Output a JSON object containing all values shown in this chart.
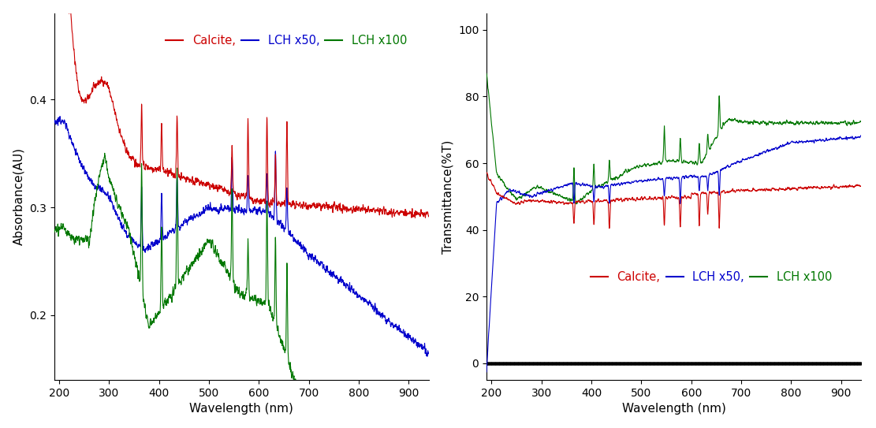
{
  "xlim": [
    190,
    940
  ],
  "abs_ylim": [
    0.14,
    0.48
  ],
  "trans_ylim": [
    -5,
    105
  ],
  "abs_yticks": [
    0.2,
    0.3,
    0.4
  ],
  "trans_yticks": [
    0,
    20,
    40,
    60,
    80,
    100
  ],
  "xlabel": "Wavelength (nm)",
  "abs_ylabel": "Absorbance(AU)",
  "trans_ylabel": "Transmittance(%T)",
  "legend_calcite": "Calcite,",
  "legend_lch50": "LCH x50,",
  "legend_lch100": "LCH x100",
  "color_calcite": "#cc0000",
  "color_lch50": "#0000cc",
  "color_lch100": "#007700",
  "background": "#ffffff",
  "xticks": [
    200,
    300,
    400,
    500,
    600,
    700,
    800,
    900
  ]
}
